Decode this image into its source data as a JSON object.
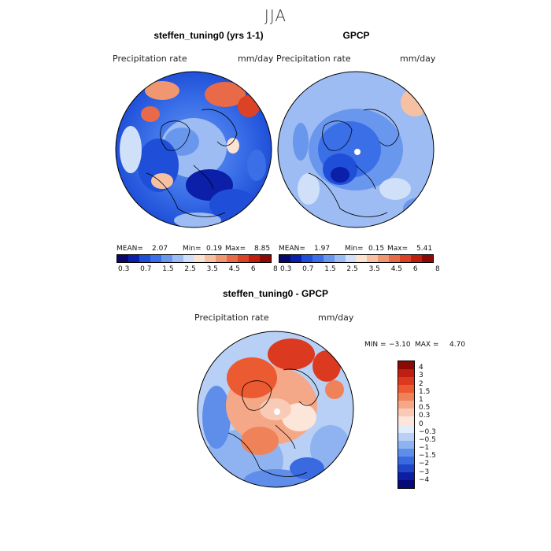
{
  "figure": {
    "season": "JJA"
  },
  "panels": [
    {
      "title": "steffen_tuning0 (yrs 1-1)",
      "variable": "Precipitation rate",
      "units": "mm/day",
      "mean_label": "MEAN=",
      "mean": "2.07",
      "min_label": "Min=",
      "min": "0.19",
      "max_label": "Max=",
      "max": "8.85"
    },
    {
      "title": "GPCP",
      "variable": "Precipitation rate",
      "units": "mm/day",
      "mean_label": "MEAN=",
      "mean": "1.97",
      "min_label": "Min=",
      "min": "0.15",
      "max_label": "Max=",
      "max": "5.41"
    },
    {
      "title": "steffen_tuning0 - GPCP",
      "variable": "Precipitation rate",
      "units": "mm/day",
      "min_label": "MIN =",
      "min": "−3.10",
      "max_label": "MAX =",
      "max": "4.70"
    }
  ],
  "colorbar_abs": {
    "ticks": [
      "0.3",
      "0.7",
      "1.5",
      "2.5",
      "3.5",
      "4.5",
      "6",
      "8"
    ],
    "colors": [
      "#08086b",
      "#0b1fa8",
      "#1f4fd8",
      "#3a6fe8",
      "#6a97ee",
      "#9dbcf3",
      "#cfe0f8",
      "#fbe3d2",
      "#f6c1a3",
      "#f09772",
      "#e86a48",
      "#dc4226",
      "#c01e10",
      "#8a0a05"
    ]
  },
  "colorbar_diff": {
    "ticks": [
      "4",
      "3",
      "2",
      "1.5",
      "1",
      "0.5",
      "0.3",
      "0",
      "−0.3",
      "−0.5",
      "−1",
      "−1.5",
      "−2",
      "−3",
      "−4"
    ],
    "colors": [
      "#8a0a05",
      "#c01e10",
      "#dc3a20",
      "#ec5a32",
      "#f0825a",
      "#f5a888",
      "#f9cbb6",
      "#fce6da",
      "#e0ecfa",
      "#b8d0f5",
      "#8fb3f0",
      "#5f8eea",
      "#3a6ae0",
      "#1f45c8",
      "#0b1fa0",
      "#060a78"
    ]
  },
  "map_palette": {
    "land": "#000000",
    "pole_marker": "#ffffff"
  }
}
